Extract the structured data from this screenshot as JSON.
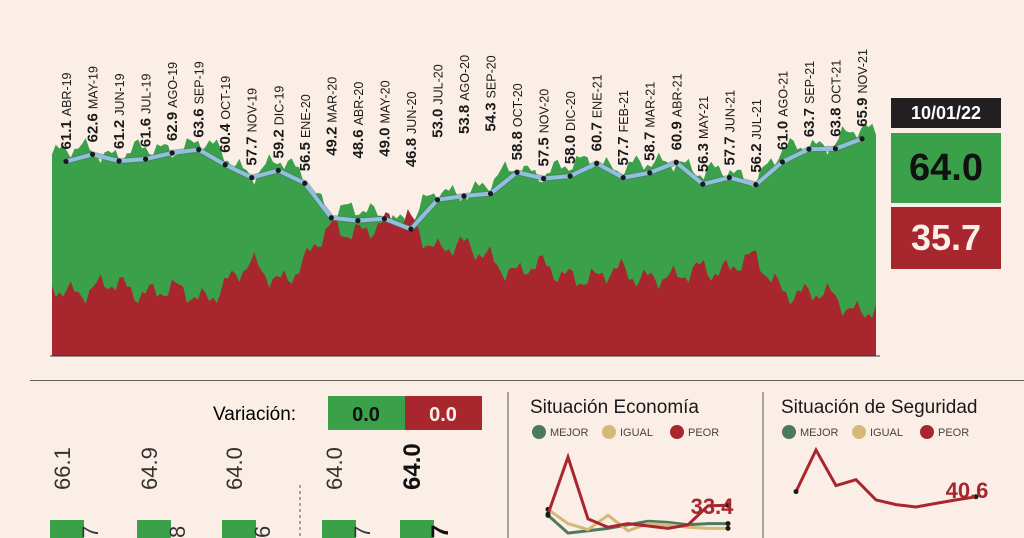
{
  "chart_data": [
    {
      "type": "area",
      "categories": [
        "ABR-19",
        "MAY-19",
        "JUN-19",
        "JUL-19",
        "AGO-19",
        "SEP-19",
        "OCT-19",
        "NOV-19",
        "DIC-19",
        "ENE-20",
        "MAR-20",
        "ABR-20",
        "MAY-20",
        "JUN-20",
        "JUL-20",
        "AGO-20",
        "SEP-20",
        "OCT-20",
        "NOV-20",
        "DIC-20",
        "ENE-21",
        "FEB-21",
        "MAR-21",
        "ABR-21",
        "MAY-21",
        "JUN-21",
        "JUL-21",
        "AGO-21",
        "SEP-21",
        "OCT-21",
        "NOV-21"
      ],
      "values": [
        61.1,
        62.6,
        61.2,
        61.6,
        62.9,
        63.6,
        60.4,
        57.7,
        59.2,
        56.5,
        49.2,
        48.6,
        49.0,
        46.8,
        53.0,
        53.8,
        54.3,
        58.8,
        57.5,
        58.0,
        60.7,
        57.7,
        58.7,
        60.9,
        56.3,
        57.7,
        56.2,
        61.0,
        63.7,
        63.8,
        65.9
      ],
      "ylim": [
        20,
        80
      ]
    },
    {
      "type": "line",
      "title": "Situación Economía",
      "legend": [
        "MEJOR",
        "IGUAL",
        "PEOR"
      ],
      "series": [
        {
          "name": "MEJOR",
          "color": "#4e7a5c",
          "values": [
            25,
            10,
            12,
            14,
            17,
            20,
            19,
            17,
            18,
            18
          ]
        },
        {
          "name": "IGUAL",
          "color": "#d6b878",
          "values": [
            30,
            18,
            13,
            25,
            12,
            18,
            17,
            15,
            14,
            14
          ]
        },
        {
          "name": "PEOR",
          "color": "#a8262d",
          "values": [
            26,
            74,
            22,
            15,
            18,
            16,
            14,
            17,
            33,
            33.4
          ]
        }
      ],
      "last_label": "33.4",
      "ylim": [
        0,
        80
      ]
    },
    {
      "type": "line",
      "title": "Situación de Seguridad",
      "legend": [
        "MEJOR",
        "IGUAL",
        "PEOR"
      ],
      "series": [
        {
          "name": "PEOR",
          "color": "#a8262d",
          "values": [
            45,
            80,
            50,
            55,
            38,
            34,
            32,
            35,
            38,
            40.6
          ]
        }
      ],
      "last_label": "40.6",
      "ylim": [
        0,
        80
      ]
    }
  ],
  "summary": {
    "date": "10/01/22",
    "approve": "64.0",
    "disapprove": "35.7",
    "variation_label": "Variación:",
    "variation_approve": "0.0",
    "variation_disapprove": "0.0"
  },
  "mini_bars": [
    {
      "approve": "66.1",
      "disapprove": "7"
    },
    {
      "approve": "64.9",
      "disapprove": "8"
    },
    {
      "approve": "64.0",
      "disapprove": "6"
    },
    {
      "approve": "64.0",
      "disapprove": "7"
    },
    {
      "approve": "64.0",
      "disapprove": "7"
    }
  ],
  "colors": {
    "approve": "#3aa14a",
    "disapprove": "#a8262d",
    "line": "#8ec1dd",
    "dark": "#231f20"
  }
}
